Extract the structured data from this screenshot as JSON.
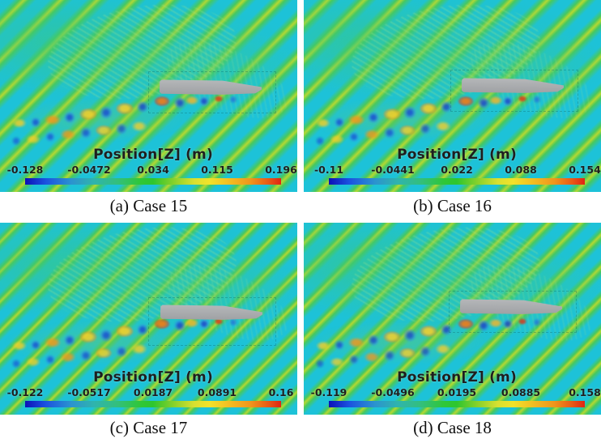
{
  "figure": {
    "legend_title": "Position[Z] (m)",
    "panels": [
      {
        "key": "a",
        "caption": "(a) Case 15",
        "ticks": [
          "-0.128",
          "-0.0472",
          "0.034",
          "0.115",
          "0.196"
        ]
      },
      {
        "key": "b",
        "caption": "(b) Case 16",
        "ticks": [
          "-0.11",
          "-0.0441",
          "0.022",
          "0.088",
          "0.154"
        ]
      },
      {
        "key": "c",
        "caption": "(c) Case 17",
        "ticks": [
          "-0.122",
          "-0.0517",
          "0.0187",
          "0.0891",
          "0.16"
        ]
      },
      {
        "key": "d",
        "caption": "(d) Case 18",
        "ticks": [
          "-0.119",
          "-0.0496",
          "0.0195",
          "0.0885",
          "0.158"
        ]
      }
    ],
    "colors": {
      "sea_base": "#1dc2d8",
      "stripe_green": "#47c85e",
      "stripe_core": "#b4d832",
      "hull_gray": "#a9abad",
      "trough_blue": "#2a6fd8",
      "crest_yellow": "#f1ce2e",
      "crest_orange": "#f0961c",
      "crest_red": "#e02413",
      "colormap_ends": [
        "#0c10b8",
        "#e02413"
      ]
    }
  },
  "chart_data": [
    {
      "type": "heatmap",
      "title": "(a) Case 15",
      "legend_title": "Position[Z] (m)",
      "colorbar_ticks": [
        -0.128,
        -0.0472,
        0.034,
        0.115,
        0.196
      ],
      "range": [
        -0.128,
        0.196
      ]
    },
    {
      "type": "heatmap",
      "title": "(b) Case 16",
      "legend_title": "Position[Z] (m)",
      "colorbar_ticks": [
        -0.11,
        -0.0441,
        0.022,
        0.088,
        0.154
      ],
      "range": [
        -0.11,
        0.154
      ]
    },
    {
      "type": "heatmap",
      "title": "(c) Case 17",
      "legend_title": "Position[Z] (m)",
      "colorbar_ticks": [
        -0.122,
        -0.0517,
        0.0187,
        0.0891,
        0.16
      ],
      "range": [
        -0.122,
        0.16
      ]
    },
    {
      "type": "heatmap",
      "title": "(d) Case 18",
      "legend_title": "Position[Z] (m)",
      "colorbar_ticks": [
        -0.119,
        -0.0496,
        0.0195,
        0.0885,
        0.158
      ],
      "range": [
        -0.119,
        0.158
      ]
    }
  ]
}
